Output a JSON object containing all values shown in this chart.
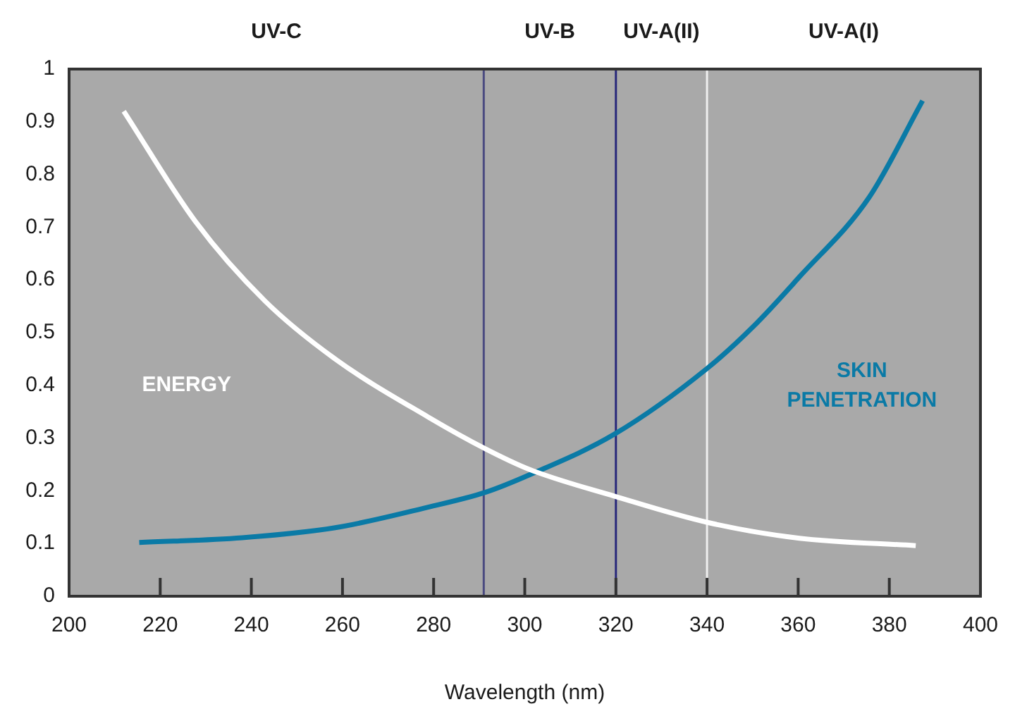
{
  "chart_data": {
    "type": "line",
    "xlabel": "Wavelength (nm)",
    "series": [
      {
        "name": "ENERGY",
        "color": "#ffffff",
        "x": [
          212,
          227.8,
          243,
          258.4,
          278.8,
          291.3,
          301.2,
          319.6,
          340.1,
          360.3,
          385.8
        ],
        "values": [
          0.92,
          0.71,
          0.56,
          0.45,
          0.34,
          0.28,
          0.24,
          0.19,
          0.14,
          0.11,
          0.096
        ]
      },
      {
        "name": "SKIN PENETRATION",
        "color": "#0a7aa6",
        "x": [
          215.4,
          238,
          258.4,
          278.8,
          291.3,
          301.2,
          319.6,
          340,
          350.2,
          360.3,
          375.6,
          387.3
        ],
        "values": [
          0.102,
          0.111,
          0.13,
          0.169,
          0.197,
          0.231,
          0.307,
          0.432,
          0.512,
          0.606,
          0.757,
          0.94
        ]
      }
    ],
    "xlim": [
      200,
      400
    ],
    "xticks": [
      200,
      220,
      240,
      260,
      280,
      300,
      320,
      340,
      360,
      380,
      400
    ],
    "ylim": [
      0,
      1
    ],
    "yticks": [
      0,
      0.1,
      0.2,
      0.3,
      0.4,
      0.5,
      0.6,
      0.7,
      0.8,
      0.9,
      1
    ],
    "bands": [
      {
        "axis": "x",
        "from": 200,
        "to": 291,
        "label": "UV-C",
        "color": "#a9a9a9"
      },
      {
        "axis": "x",
        "from": 291,
        "to": 320,
        "label": "UV-B",
        "color": "#a9a9a9"
      },
      {
        "axis": "x",
        "from": 320,
        "to": 340,
        "label": "UV-A(II)",
        "color": "#a9a9a9"
      },
      {
        "axis": "x",
        "from": 340,
        "to": 400,
        "label": "UV-A(I)",
        "color": "#a9a9a9"
      }
    ],
    "ref_lines": [
      {
        "axis": "x",
        "value": 291,
        "color": "#4a4a80"
      },
      {
        "axis": "x",
        "value": 320,
        "color": "#28287a"
      },
      {
        "axis": "x",
        "value": 340,
        "color": "#eeeeee"
      }
    ],
    "legend": false,
    "marker": "none",
    "line_style": "solid"
  }
}
